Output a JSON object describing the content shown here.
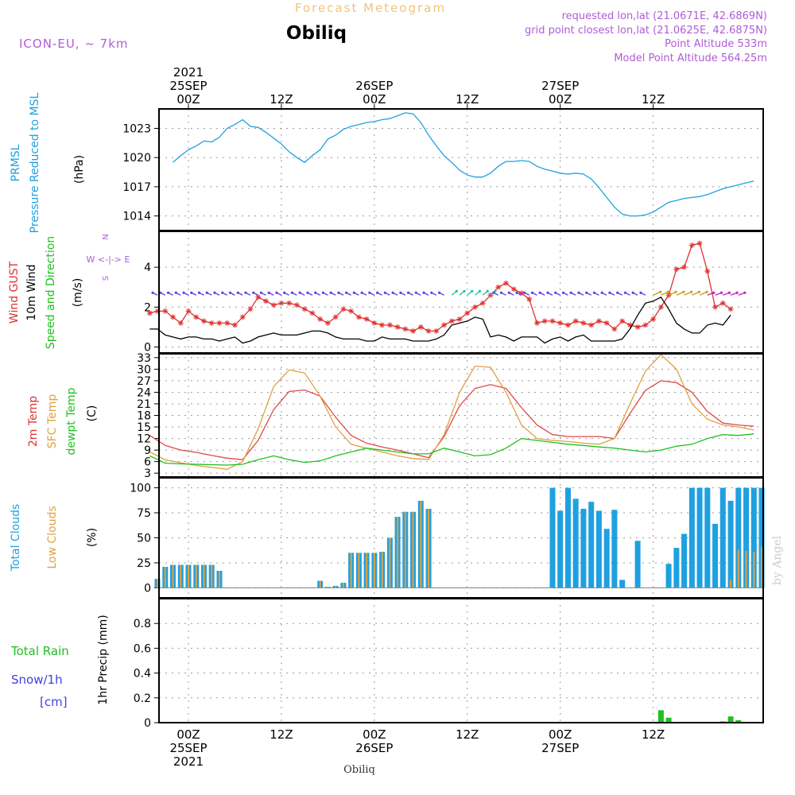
{
  "header": {
    "forecast_title": "Forecast Meteogram",
    "location": "Obiliq",
    "model": "ICON-EU, ~ 7km",
    "requested": "requested lon,lat (21.0671E, 42.6869N)",
    "grid_point": "grid point closest lon,lat (21.0625E, 42.6875N)",
    "point_altitude": "Point Altitude 533m",
    "model_altitude": "Model Point Altitude 564.25m",
    "footer_location": "Obiliq",
    "watermark": "by Angel"
  },
  "time_axis": {
    "hours": [
      -3,
      0,
      12,
      24,
      36,
      48,
      60,
      74
    ],
    "top_labels": [
      {
        "h": 0,
        "lines": [
          "2021",
          "25SEP",
          "00Z"
        ]
      },
      {
        "h": 12,
        "lines": [
          "12Z"
        ]
      },
      {
        "h": 24,
        "lines": [
          "26SEP",
          "00Z"
        ]
      },
      {
        "h": 36,
        "lines": [
          "12Z"
        ]
      },
      {
        "h": 48,
        "lines": [
          "27SEP",
          "00Z"
        ]
      },
      {
        "h": 60,
        "lines": [
          "12Z"
        ]
      }
    ],
    "bottom_labels": [
      {
        "h": 0,
        "lines": [
          "00Z",
          "25SEP",
          "2021"
        ]
      },
      {
        "h": 12,
        "lines": [
          "12Z"
        ]
      },
      {
        "h": 24,
        "lines": [
          "00Z",
          "26SEP"
        ]
      },
      {
        "h": 36,
        "lines": [
          "12Z"
        ]
      },
      {
        "h": 48,
        "lines": [
          "00Z",
          "27SEP"
        ]
      },
      {
        "h": 60,
        "lines": [
          "12Z"
        ]
      }
    ]
  },
  "panel_labels": {
    "pressure": {
      "line1": "PRMSL",
      "line2": "Pressure Reduced to MSL",
      "unit": "(hPa)"
    },
    "wind": {
      "gust": "Wind GUST",
      "wind10": "10m Wind",
      "speed_dir": "Speed and Direction",
      "unit": "(m/s)",
      "compass_n": "N",
      "compass_s": "S",
      "compass_ew": "W <-|-> E"
    },
    "temp": {
      "t2m": "2m Temp",
      "sfc": "SFC Temp",
      "dewpt": "dewpt Temp",
      "unit": "(C)"
    },
    "clouds": {
      "total": "Total Clouds",
      "low": "Low Clouds",
      "unit": "(%)"
    },
    "precip": {
      "rain": "Total Rain",
      "snow": "Snow/1h",
      "cm": "[cm]",
      "axis": "1hr Precip (mm)"
    }
  },
  "chart_data": [
    {
      "type": "line",
      "name": "pressure",
      "ylabel": "Pressure Reduced to MSL (hPa)",
      "ylim": [
        1012.5,
        1025
      ],
      "yticks": [
        1014,
        1017,
        1020,
        1023
      ],
      "x": [
        -2,
        -1,
        0,
        1,
        2,
        3,
        4,
        5,
        6,
        7,
        8,
        9,
        10,
        11,
        12,
        13,
        14,
        15,
        16,
        17,
        18,
        19,
        20,
        21,
        22,
        23,
        24,
        25,
        26,
        27,
        28,
        29,
        30,
        31,
        32,
        33,
        34,
        35,
        36,
        37,
        38,
        39,
        40,
        41,
        42,
        43,
        44,
        45,
        46,
        47,
        48,
        49,
        50,
        51,
        52,
        53,
        54,
        55,
        56,
        57,
        58,
        59,
        60,
        61,
        62,
        63,
        64,
        65,
        66,
        67,
        68,
        69,
        70,
        71,
        72,
        73
      ],
      "series": [
        {
          "name": "PRMSL",
          "color": "#1fa0e0",
          "values": [
            1019.5,
            1020.2,
            1020.8,
            1021.2,
            1021.7,
            1021.6,
            1022.1,
            1023.0,
            1023.4,
            1023.9,
            1023.2,
            1023.1,
            1022.6,
            1022.0,
            1021.4,
            1020.6,
            1020.0,
            1019.5,
            1020.2,
            1020.8,
            1021.9,
            1022.3,
            1022.9,
            1023.2,
            1023.4,
            1023.6,
            1023.7,
            1023.9,
            1024.0,
            1024.3,
            1024.6,
            1024.5,
            1023.6,
            1022.3,
            1021.2,
            1020.2,
            1019.5,
            1018.7,
            1018.2,
            1018.0,
            1018.0,
            1018.4,
            1019.1,
            1019.6,
            1019.6,
            1019.7,
            1019.6,
            1019.1,
            1018.8,
            1018.6,
            1018.4,
            1018.3,
            1018.4,
            1018.3,
            1017.8,
            1016.9,
            1015.9,
            1014.9,
            1014.2,
            1014.0,
            1014.0,
            1014.1,
            1014.4,
            1014.9,
            1015.4,
            1015.6,
            1015.8,
            1015.9,
            1016.0,
            1016.2,
            1016.5,
            1016.8,
            1017.0,
            1017.2,
            1017.4,
            1017.6
          ]
        }
      ]
    },
    {
      "type": "line",
      "name": "wind",
      "ylabel": "(m/s)",
      "ylim": [
        -0.3,
        5.8
      ],
      "yticks": [
        0,
        2,
        4
      ],
      "x": [
        -5,
        -4,
        -3,
        -2,
        -1,
        0,
        1,
        2,
        3,
        4,
        5,
        6,
        7,
        8,
        9,
        10,
        11,
        12,
        13,
        14,
        15,
        16,
        17,
        18,
        19,
        20,
        21,
        22,
        23,
        24,
        25,
        26,
        27,
        28,
        29,
        30,
        31,
        32,
        33,
        34,
        35,
        36,
        37,
        38,
        39,
        40,
        41,
        42,
        43,
        44,
        45,
        46,
        47,
        48,
        49,
        50,
        51,
        52,
        53,
        54,
        55,
        56,
        57,
        58,
        59,
        60,
        61,
        62,
        63,
        64,
        65,
        66,
        67,
        68,
        69,
        70
      ],
      "series": [
        {
          "name": "Wind GUST",
          "color": "#e03030",
          "values": [
            1.7,
            1.8,
            1.8,
            1.5,
            1.2,
            1.8,
            1.5,
            1.3,
            1.2,
            1.2,
            1.2,
            1.1,
            1.5,
            1.9,
            2.5,
            2.3,
            2.1,
            2.2,
            2.2,
            2.1,
            1.9,
            1.7,
            1.4,
            1.2,
            1.5,
            1.9,
            1.8,
            1.5,
            1.4,
            1.2,
            1.1,
            1.1,
            1.0,
            0.9,
            0.8,
            1.0,
            0.8,
            0.8,
            1.1,
            1.3,
            1.4,
            1.7,
            2.0,
            2.2,
            2.6,
            3.0,
            3.2,
            2.9,
            2.7,
            2.4,
            1.2,
            1.3,
            1.3,
            1.2,
            1.1,
            1.3,
            1.2,
            1.1,
            1.3,
            1.2,
            0.9,
            1.3,
            1.1,
            1.0,
            1.1,
            1.4,
            2.0,
            2.6,
            3.9,
            4.0,
            5.1,
            5.2,
            3.8,
            2.0,
            2.2,
            1.9
          ]
        },
        {
          "name": "10m Wind",
          "color": "#000000",
          "values": [
            0.9,
            0.9,
            0.6,
            0.5,
            0.4,
            0.5,
            0.5,
            0.4,
            0.4,
            0.3,
            0.4,
            0.5,
            0.2,
            0.3,
            0.5,
            0.6,
            0.7,
            0.6,
            0.6,
            0.6,
            0.7,
            0.8,
            0.8,
            0.7,
            0.5,
            0.4,
            0.4,
            0.4,
            0.3,
            0.3,
            0.5,
            0.4,
            0.4,
            0.4,
            0.3,
            0.3,
            0.3,
            0.4,
            0.6,
            1.1,
            1.2,
            1.3,
            1.5,
            1.4,
            0.5,
            0.6,
            0.5,
            0.3,
            0.5,
            0.5,
            0.5,
            0.2,
            0.4,
            0.5,
            0.3,
            0.5,
            0.6,
            0.3,
            0.3,
            0.3,
            0.3,
            0.4,
            0.9,
            1.6,
            2.2,
            2.3,
            2.5,
            1.9,
            1.2,
            0.9,
            0.7,
            0.7,
            1.1,
            1.2,
            1.1,
            1.6
          ]
        }
      ]
    },
    {
      "type": "line",
      "name": "temperature",
      "ylabel": "(C)",
      "ylim": [
        2,
        34
      ],
      "yticks": [
        3,
        6,
        9,
        12,
        15,
        18,
        21,
        24,
        27,
        30,
        33
      ],
      "x": [
        -5,
        -3,
        -1,
        1,
        3,
        5,
        7,
        9,
        11,
        13,
        15,
        17,
        19,
        21,
        23,
        25,
        27,
        29,
        31,
        33,
        35,
        37,
        39,
        41,
        43,
        45,
        47,
        49,
        51,
        53,
        55,
        57,
        59,
        61,
        63,
        65,
        67,
        69,
        71,
        73
      ],
      "series": [
        {
          "name": "2m Temp",
          "color": "#e04848",
          "values": [
            12.8,
            10.2,
            9.0,
            8.4,
            7.6,
            6.9,
            6.5,
            11.5,
            19.5,
            24.2,
            24.6,
            23.0,
            17.5,
            12.8,
            10.8,
            9.8,
            9.0,
            8.0,
            7.0,
            12.5,
            20.5,
            25.0,
            26.0,
            25.0,
            20.0,
            15.5,
            13.0,
            12.5,
            12.5,
            12.5,
            12.0,
            18.5,
            24.5,
            27.0,
            26.5,
            24.0,
            19.0,
            16.0,
            15.5,
            15.2
          ]
        },
        {
          "name": "SFC Temp",
          "color": "#e0a040",
          "values": [
            8.5,
            6.5,
            5.7,
            5.0,
            4.5,
            4.0,
            6.0,
            14.5,
            25.5,
            29.8,
            29.0,
            23.0,
            15.0,
            10.5,
            9.5,
            8.5,
            7.5,
            6.8,
            6.5,
            13.0,
            24.0,
            30.8,
            30.5,
            24.0,
            15.5,
            12.0,
            11.5,
            11.2,
            10.8,
            10.5,
            12.0,
            21.0,
            29.5,
            33.8,
            30.0,
            21.0,
            17.0,
            15.5,
            15.0,
            14.2
          ]
        },
        {
          "name": "dewpt Temp",
          "color": "#20c020",
          "values": [
            7.5,
            5.6,
            5.4,
            5.3,
            5.2,
            5.1,
            5.3,
            6.5,
            7.5,
            6.5,
            5.8,
            6.2,
            7.5,
            8.5,
            9.5,
            9.0,
            8.5,
            8.0,
            8.0,
            9.5,
            8.5,
            7.5,
            7.8,
            9.5,
            12.0,
            11.5,
            11.0,
            10.5,
            10.2,
            9.8,
            9.5,
            9.0,
            8.5,
            9.0,
            10.0,
            10.5,
            12.0,
            13.0,
            12.8,
            13.2
          ]
        }
      ]
    },
    {
      "type": "bar",
      "name": "clouds",
      "ylabel": "(%)",
      "ylim": [
        -10,
        110
      ],
      "yticks": [
        0,
        25,
        50,
        75,
        100
      ],
      "x": [
        -5,
        -4,
        -3,
        -2,
        -1,
        0,
        1,
        2,
        3,
        4,
        5,
        6,
        7,
        8,
        9,
        10,
        11,
        12,
        13,
        14,
        15,
        16,
        17,
        18,
        19,
        20,
        21,
        22,
        23,
        24,
        25,
        26,
        27,
        28,
        29,
        30,
        31,
        32,
        33,
        34,
        35,
        36,
        37,
        38,
        39,
        40,
        41,
        42,
        43,
        44,
        45,
        46,
        47,
        48,
        49,
        50,
        51,
        52,
        53,
        54,
        55,
        56,
        57,
        58,
        59,
        60,
        61,
        62,
        63,
        64,
        65,
        66,
        67,
        68,
        69,
        70,
        71,
        72,
        73,
        74
      ],
      "series": [
        {
          "name": "Total Clouds",
          "color": "#1fa0e0",
          "values": [
            0,
            9,
            21,
            23,
            23,
            23,
            23,
            23,
            23,
            17,
            0,
            0,
            0,
            0,
            0,
            0,
            0,
            0,
            0,
            0,
            0,
            0,
            7,
            1,
            2,
            5,
            35,
            35,
            35,
            35,
            36,
            50,
            71,
            76,
            76,
            87,
            79,
            0,
            0,
            0,
            0,
            0,
            0,
            0,
            0,
            0,
            0,
            0,
            0,
            0,
            0,
            0,
            100,
            77,
            100,
            89,
            79,
            86,
            77,
            59,
            78,
            8,
            0,
            47,
            0,
            0,
            0,
            24,
            40,
            54,
            100,
            100,
            100,
            64,
            100,
            87,
            100,
            100,
            100,
            100
          ]
        },
        {
          "name": "Low Clouds",
          "color": "#e0a040",
          "values": [
            0,
            9,
            21,
            23,
            23,
            23,
            23,
            23,
            23,
            17,
            0,
            0,
            0,
            0,
            0,
            0,
            0,
            0,
            0,
            0,
            0,
            0,
            7,
            1,
            2,
            5,
            35,
            35,
            35,
            35,
            36,
            50,
            71,
            76,
            76,
            87,
            79,
            0,
            0,
            0,
            0,
            0,
            0,
            0,
            0,
            0,
            0,
            0,
            0,
            0,
            0,
            0,
            0,
            0,
            0,
            0,
            0,
            0,
            0,
            0,
            0,
            0,
            0,
            0,
            0,
            0,
            0,
            0,
            0,
            0,
            0,
            0,
            0,
            0,
            0,
            8,
            38,
            37,
            36,
            41
          ]
        }
      ]
    },
    {
      "type": "bar",
      "name": "precipitation",
      "ylabel": "1hr Precip (mm)",
      "ylim": [
        0,
        1.0
      ],
      "yticks": [
        0,
        0.2,
        0.4,
        0.6,
        0.8
      ],
      "x": [
        61,
        62,
        69,
        70,
        71
      ],
      "series": [
        {
          "name": "Total Rain",
          "color": "#20c020",
          "values": [
            0.1,
            0.04,
            0.01,
            0.05,
            0.02
          ]
        }
      ]
    }
  ]
}
